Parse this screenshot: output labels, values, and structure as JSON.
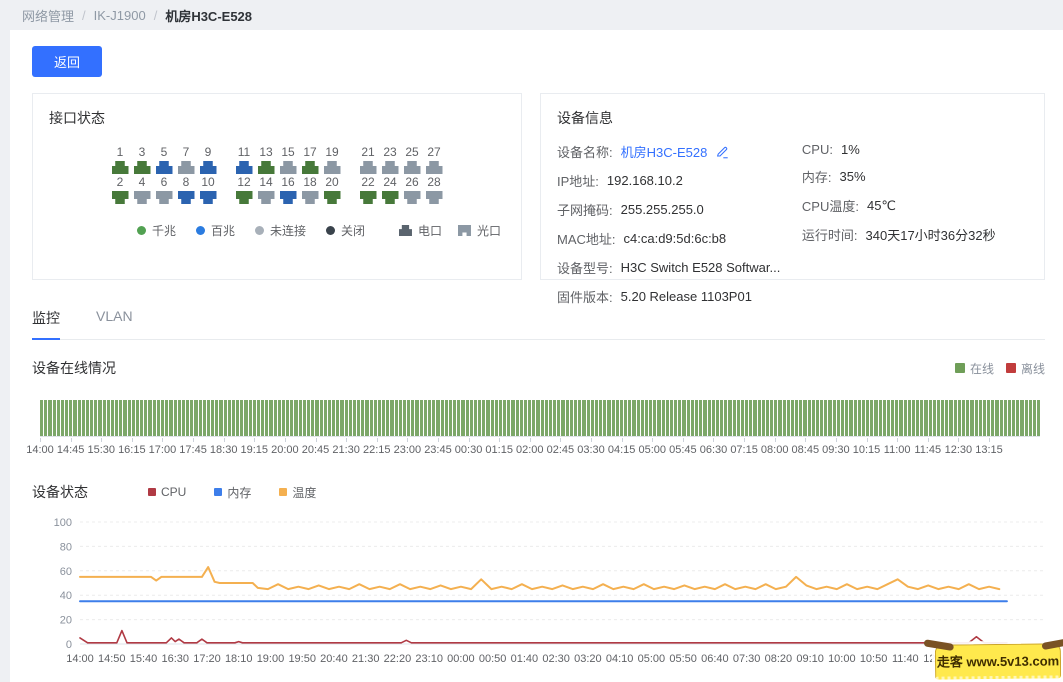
{
  "breadcrumb": {
    "items": [
      "网络管理",
      "IK-J1900",
      "机房H3C-E528"
    ],
    "separator": "/"
  },
  "toolbar": {
    "back_label": "返回"
  },
  "interface_panel": {
    "title": "接口状态",
    "status_colors": {
      "gigabit": "#47793a",
      "fast": "#2b63b0",
      "disconnected": "#8c98a4",
      "closed": "#3a434c"
    },
    "ports_top": [
      {
        "num": 1,
        "s": "gigabit"
      },
      {
        "num": 3,
        "s": "gigabit"
      },
      {
        "num": 5,
        "s": "fast"
      },
      {
        "num": 7,
        "s": "disconnected"
      },
      {
        "num": 9,
        "s": "fast"
      },
      {
        "num": 11,
        "s": "fast"
      },
      {
        "num": 13,
        "s": "gigabit"
      },
      {
        "num": 15,
        "s": "disconnected"
      },
      {
        "num": 17,
        "s": "gigabit"
      },
      {
        "num": 19,
        "s": "disconnected"
      },
      {
        "num": 21,
        "s": "disconnected"
      },
      {
        "num": 23,
        "s": "disconnected"
      },
      {
        "num": 25,
        "s": "disconnected"
      },
      {
        "num": 27,
        "s": "disconnected"
      }
    ],
    "ports_bottom": [
      {
        "num": 2,
        "s": "gigabit"
      },
      {
        "num": 4,
        "s": "disconnected"
      },
      {
        "num": 6,
        "s": "disconnected"
      },
      {
        "num": 8,
        "s": "fast"
      },
      {
        "num": 10,
        "s": "fast"
      },
      {
        "num": 12,
        "s": "gigabit"
      },
      {
        "num": 14,
        "s": "disconnected"
      },
      {
        "num": 16,
        "s": "fast"
      },
      {
        "num": 18,
        "s": "disconnected"
      },
      {
        "num": 20,
        "s": "gigabit"
      },
      {
        "num": 22,
        "s": "gigabit"
      },
      {
        "num": 24,
        "s": "gigabit"
      },
      {
        "num": 26,
        "s": "disconnected"
      },
      {
        "num": 28,
        "s": "disconnected"
      }
    ],
    "groups": [
      5,
      5,
      4
    ],
    "legend": [
      {
        "label": "千兆",
        "color": "#52a152"
      },
      {
        "label": "百兆",
        "color": "#2b7ce0"
      },
      {
        "label": "未连接",
        "color": "#a8b0b9"
      },
      {
        "label": "关闭",
        "color": "#3a434c"
      }
    ],
    "port_types": [
      {
        "id": "electrical",
        "label": "电口"
      },
      {
        "id": "optical",
        "label": "光口"
      }
    ]
  },
  "device_info": {
    "title": "设备信息",
    "left_rows": [
      {
        "label": "设备名称:",
        "value": "机房H3C-E528",
        "link": true,
        "editable": true
      },
      {
        "label": "IP地址:",
        "value": "192.168.10.2"
      },
      {
        "label": "子网掩码:",
        "value": "255.255.255.0"
      },
      {
        "label": "MAC地址:",
        "value": "c4:ca:d9:5d:6c:b8"
      },
      {
        "label": "设备型号:",
        "value": "H3C Switch E528 Softwar..."
      },
      {
        "label": "固件版本:",
        "value": "5.20 Release 1103P01"
      }
    ],
    "right_rows": [
      {
        "label": "CPU:",
        "value": "1%"
      },
      {
        "label": "内存:",
        "value": "35%"
      },
      {
        "label": "CPU温度:",
        "value": "45℃"
      },
      {
        "label": "运行时间:",
        "value": "340天17小时36分32秒"
      }
    ]
  },
  "tabs": [
    {
      "id": "monitor",
      "label": "监控",
      "active": true
    },
    {
      "id": "vlan",
      "label": "VLAN",
      "active": false
    }
  ],
  "online_section": {
    "title": "设备在线情况",
    "legend": [
      {
        "label": "在线",
        "color": "#6f9e58"
      },
      {
        "label": "离线",
        "color": "#c13c3c"
      }
    ]
  },
  "status_section": {
    "title": "设备状态",
    "legend": [
      {
        "label": "CPU",
        "color": "#b03a44"
      },
      {
        "label": "内存",
        "color": "#3d7eea"
      },
      {
        "label": "温度",
        "color": "#f4b050"
      }
    ]
  },
  "chart_data": [
    {
      "type": "bar",
      "title": "设备在线情况",
      "legend": [
        "在线",
        "离线"
      ],
      "colors": {
        "online": "#7ca768",
        "offline": "#c13c3c"
      },
      "x_ticks": [
        "14:00",
        "14:45",
        "15:30",
        "16:15",
        "17:00",
        "17:45",
        "18:30",
        "19:15",
        "20:00",
        "20:45",
        "21:30",
        "22:15",
        "23:00",
        "23:45",
        "00:30",
        "01:15",
        "02:00",
        "02:45",
        "03:30",
        "04:15",
        "05:00",
        "05:45",
        "06:30",
        "07:15",
        "08:00",
        "08:45",
        "09:30",
        "10:15",
        "11:00",
        "11:45",
        "12:30",
        "13:15"
      ],
      "x_tick_step_min": 45,
      "x_total_min": 1470,
      "bar_count": 240,
      "bar_value": 1,
      "note": "device online (value 1) for every interval of the whole period",
      "ylim": [
        0,
        1
      ]
    },
    {
      "type": "line",
      "title": "设备状态",
      "x_ticks": [
        "14:00",
        "14:50",
        "15:40",
        "16:30",
        "17:20",
        "18:10",
        "19:00",
        "19:50",
        "20:40",
        "21:30",
        "22:20",
        "23:10",
        "00:00",
        "00:50",
        "01:40",
        "02:30",
        "03:20",
        "04:10",
        "05:00",
        "05:50",
        "06:40",
        "07:30",
        "08:20",
        "09:10",
        "10:00",
        "10:50",
        "11:40",
        "12:30"
      ],
      "x_tick_step_min": 50,
      "x_total_min": 1520,
      "ylim": [
        0,
        100
      ],
      "y_ticks": [
        0,
        20,
        40,
        60,
        80,
        100
      ],
      "grid": "dashed horizontal",
      "series": [
        {
          "name": "温度",
          "color": "#f4b050",
          "width": 2,
          "keypoints": [
            [
              0,
              55
            ],
            [
              112,
              55
            ],
            [
              120,
              52
            ],
            [
              128,
              55
            ],
            [
              192,
              55
            ],
            [
              202,
              63
            ],
            [
              212,
              51
            ],
            [
              220,
              50
            ],
            [
              272,
              50
            ],
            [
              280,
              46
            ]
          ],
          "wave": {
            "from": 280,
            "to": 1460,
            "low": 45,
            "high": 49,
            "period": 32
          },
          "peaks": [
            [
              628,
              53
            ],
            [
              1122,
              55
            ],
            [
              1292,
              53
            ]
          ]
        },
        {
          "name": "内存",
          "color": "#3d7eea",
          "width": 2,
          "points": [
            [
              0,
              35
            ],
            [
              1460,
              35
            ]
          ]
        },
        {
          "name": "CPU",
          "color": "#b03a44",
          "width": 1.6,
          "points": [
            [
              0,
              5
            ],
            [
              12,
              1
            ],
            [
              58,
              1
            ],
            [
              66,
              11
            ],
            [
              74,
              1
            ],
            [
              136,
              1
            ],
            [
              144,
              5
            ],
            [
              150,
              2
            ],
            [
              156,
              4
            ],
            [
              164,
              1
            ],
            [
              184,
              1
            ],
            [
              192,
              4
            ],
            [
              200,
              1
            ],
            [
              244,
              1
            ],
            [
              250,
              2
            ],
            [
              256,
              1
            ],
            [
              506,
              1
            ],
            [
              514,
              3
            ],
            [
              522,
              1
            ],
            [
              1400,
              1
            ],
            [
              1412,
              6
            ],
            [
              1424,
              1
            ],
            [
              1460,
              1
            ]
          ]
        }
      ]
    }
  ],
  "watermark": {
    "text": "走客 www.5v13.com"
  }
}
